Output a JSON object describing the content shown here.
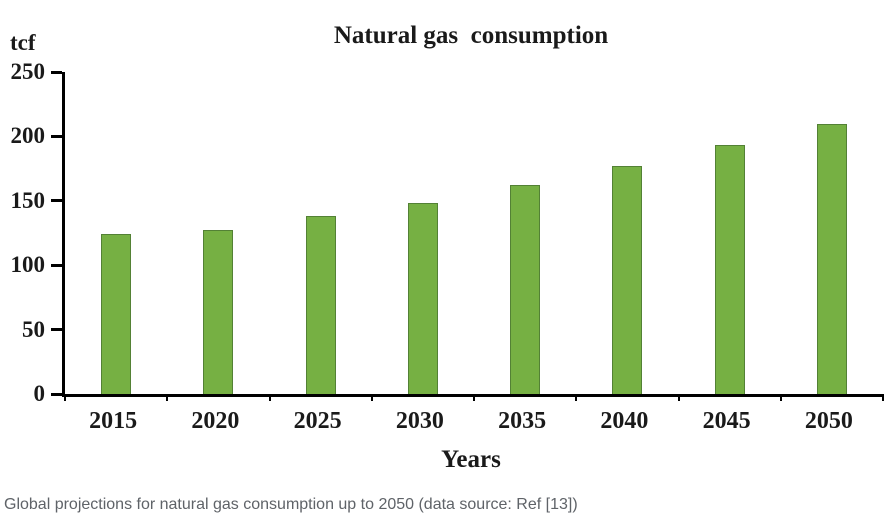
{
  "chart_data": {
    "type": "bar",
    "title": "Natural gas  consumption",
    "unit_label": "tcf",
    "xlabel": "Years",
    "ylabel": "tcf",
    "categories": [
      "2015",
      "2020",
      "2025",
      "2030",
      "2035",
      "2040",
      "2045",
      "2050"
    ],
    "values": [
      124,
      127,
      138,
      148,
      162,
      177,
      193,
      210
    ],
    "ylim": [
      0,
      250
    ],
    "yticks": [
      0,
      50,
      100,
      150,
      200,
      250
    ],
    "bar_fill": "#76b043",
    "bar_border": "#538135",
    "grid": false,
    "legend_position": "none"
  },
  "caption": "Global projections for natural gas consumption up to 2050 (data source: Ref [13])"
}
